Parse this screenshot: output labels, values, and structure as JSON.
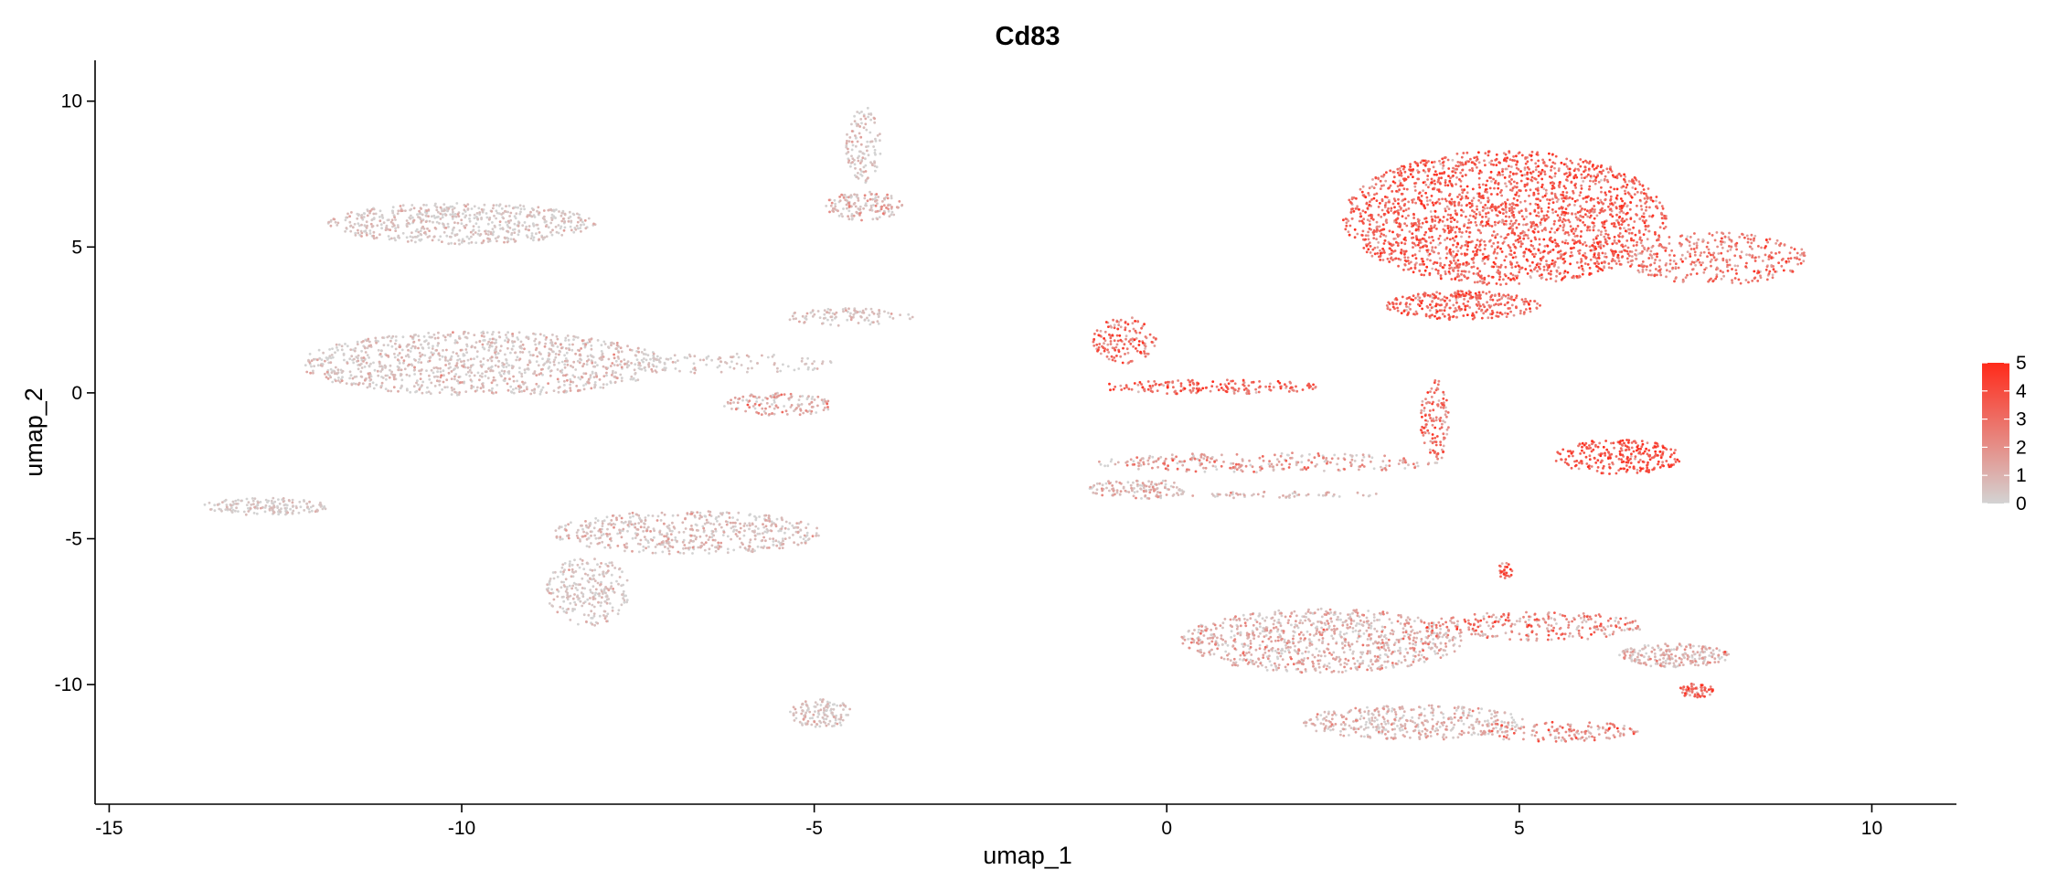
{
  "chart_data": {
    "type": "scatter",
    "title": "Cd83",
    "xlabel": "umap_1",
    "ylabel": "umap_2",
    "xlim": [
      -15.2,
      11.2
    ],
    "ylim": [
      -14.1,
      11.4
    ],
    "xticks": [
      -15,
      -10,
      -5,
      0,
      5,
      10
    ],
    "yticks": [
      -10,
      -5,
      0,
      5,
      10
    ],
    "grid": false,
    "legend": {
      "placement": "right",
      "type": "colorbar",
      "min": 0,
      "max": 5,
      "ticks": [
        0,
        1,
        2,
        3,
        4,
        5
      ],
      "low_color": "#d3d3d3",
      "high_color": "#ff2a1a"
    },
    "point_color_low": "#d3d3d3",
    "point_color_high": "#ff2a1a",
    "clusters": [
      {
        "cx": 4.8,
        "cy": 6.0,
        "rx": 2.3,
        "ry": 2.3,
        "n": 2200,
        "expr_mean": 3.2,
        "expr_sd": 1.0
      },
      {
        "cx": 7.8,
        "cy": 4.6,
        "rx": 1.3,
        "ry": 0.9,
        "n": 350,
        "expr_mean": 2.6,
        "expr_sd": 1.0
      },
      {
        "cx": 4.2,
        "cy": 3.0,
        "rx": 1.1,
        "ry": 0.5,
        "n": 300,
        "expr_mean": 3.0,
        "expr_sd": 1.0
      },
      {
        "cx": -0.6,
        "cy": 1.8,
        "rx": 0.45,
        "ry": 0.8,
        "n": 140,
        "expr_mean": 3.0,
        "expr_sd": 1.0
      },
      {
        "cx": 0.6,
        "cy": 0.2,
        "rx": 1.6,
        "ry": 0.25,
        "n": 170,
        "expr_mean": 3.0,
        "expr_sd": 1.0
      },
      {
        "cx": 6.4,
        "cy": -2.2,
        "rx": 0.9,
        "ry": 0.6,
        "n": 260,
        "expr_mean": 3.6,
        "expr_sd": 0.9
      },
      {
        "cx": 3.8,
        "cy": -1.0,
        "rx": 0.2,
        "ry": 1.5,
        "n": 120,
        "expr_mean": 2.6,
        "expr_sd": 1.0
      },
      {
        "cx": 1.4,
        "cy": -2.4,
        "rx": 2.4,
        "ry": 0.35,
        "n": 260,
        "expr_mean": 1.4,
        "expr_sd": 1.1
      },
      {
        "cx": -0.4,
        "cy": -3.3,
        "rx": 0.7,
        "ry": 0.35,
        "n": 130,
        "expr_mean": 0.8,
        "expr_sd": 0.8
      },
      {
        "cx": 1.6,
        "cy": -3.5,
        "rx": 1.5,
        "ry": 0.12,
        "n": 60,
        "expr_mean": 0.6,
        "expr_sd": 0.6
      },
      {
        "cx": 2.2,
        "cy": -8.5,
        "rx": 2.0,
        "ry": 1.1,
        "n": 900,
        "expr_mean": 0.8,
        "expr_sd": 0.9
      },
      {
        "cx": 5.2,
        "cy": -8.0,
        "rx": 1.6,
        "ry": 0.5,
        "n": 260,
        "expr_mean": 2.0,
        "expr_sd": 1.2
      },
      {
        "cx": 3.5,
        "cy": -11.3,
        "rx": 1.6,
        "ry": 0.6,
        "n": 400,
        "expr_mean": 0.7,
        "expr_sd": 0.8
      },
      {
        "cx": 5.5,
        "cy": -11.6,
        "rx": 1.2,
        "ry": 0.35,
        "n": 160,
        "expr_mean": 1.6,
        "expr_sd": 1.1
      },
      {
        "cx": 7.2,
        "cy": -9.0,
        "rx": 0.8,
        "ry": 0.4,
        "n": 220,
        "expr_mean": 0.8,
        "expr_sd": 0.8
      },
      {
        "cx": 7.5,
        "cy": -10.2,
        "rx": 0.25,
        "ry": 0.25,
        "n": 60,
        "expr_mean": 3.0,
        "expr_sd": 1.0
      },
      {
        "cx": 4.8,
        "cy": -6.1,
        "rx": 0.1,
        "ry": 0.3,
        "n": 25,
        "expr_mean": 3.0,
        "expr_sd": 1.0
      },
      {
        "cx": -10.0,
        "cy": 5.8,
        "rx": 1.9,
        "ry": 0.7,
        "n": 600,
        "expr_mean": 0.3,
        "expr_sd": 0.5
      },
      {
        "cx": -9.7,
        "cy": 1.0,
        "rx": 2.6,
        "ry": 1.1,
        "n": 1100,
        "expr_mean": 0.4,
        "expr_sd": 0.6
      },
      {
        "cx": -6.2,
        "cy": 1.0,
        "rx": 1.5,
        "ry": 0.35,
        "n": 100,
        "expr_mean": 0.3,
        "expr_sd": 0.5
      },
      {
        "cx": -4.5,
        "cy": 2.6,
        "rx": 0.9,
        "ry": 0.3,
        "n": 100,
        "expr_mean": 0.4,
        "expr_sd": 0.5
      },
      {
        "cx": -5.5,
        "cy": -0.4,
        "rx": 0.8,
        "ry": 0.4,
        "n": 130,
        "expr_mean": 0.9,
        "expr_sd": 0.9
      },
      {
        "cx": -4.3,
        "cy": 8.5,
        "rx": 0.25,
        "ry": 1.3,
        "n": 120,
        "expr_mean": 0.4,
        "expr_sd": 0.6
      },
      {
        "cx": -4.3,
        "cy": 6.4,
        "rx": 0.55,
        "ry": 0.5,
        "n": 140,
        "expr_mean": 0.7,
        "expr_sd": 0.8
      },
      {
        "cx": -12.8,
        "cy": -3.9,
        "rx": 0.9,
        "ry": 0.3,
        "n": 170,
        "expr_mean": 0.2,
        "expr_sd": 0.4
      },
      {
        "cx": -6.8,
        "cy": -4.8,
        "rx": 1.9,
        "ry": 0.75,
        "n": 550,
        "expr_mean": 0.5,
        "expr_sd": 0.6
      },
      {
        "cx": -8.2,
        "cy": -6.8,
        "rx": 0.6,
        "ry": 1.2,
        "n": 250,
        "expr_mean": 0.3,
        "expr_sd": 0.5
      },
      {
        "cx": -4.9,
        "cy": -11.0,
        "rx": 0.45,
        "ry": 0.5,
        "n": 130,
        "expr_mean": 0.3,
        "expr_sd": 0.5
      }
    ]
  }
}
